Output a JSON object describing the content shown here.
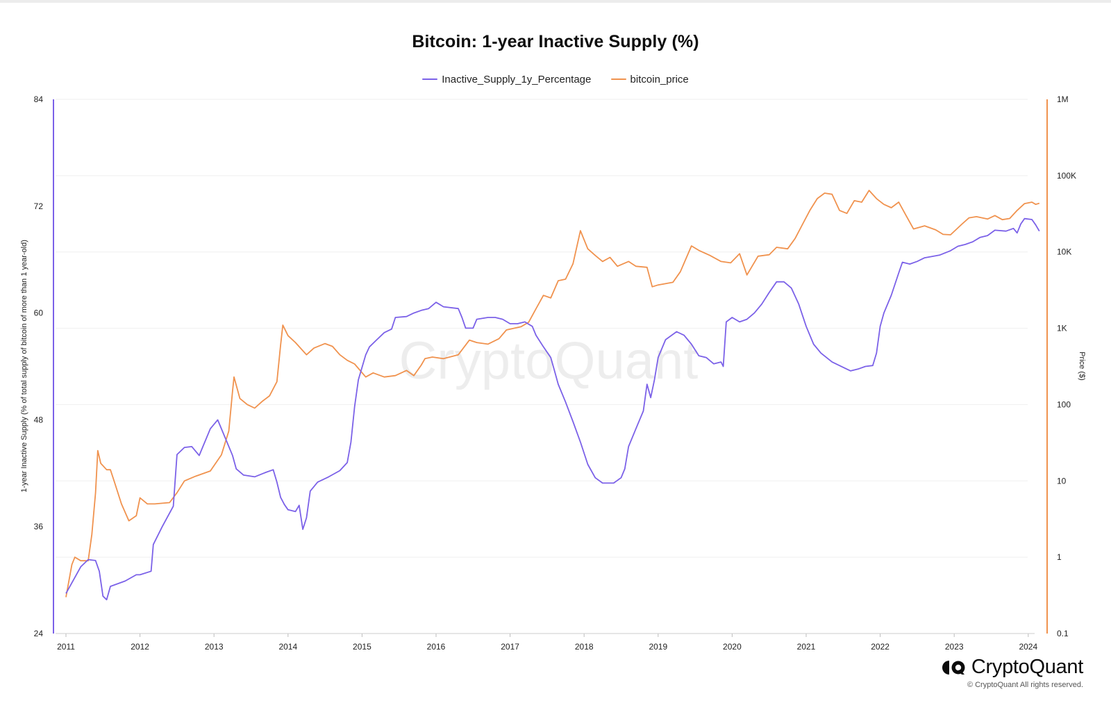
{
  "title": "Bitcoin: 1-year Inactive Supply (%)",
  "legend": {
    "items": [
      {
        "label": "Inactive_Supply_1y_Percentage",
        "color": "#7b61e8"
      },
      {
        "label": "bitcoin_price",
        "color": "#f0924e"
      }
    ]
  },
  "brand": {
    "name": "CryptoQuant",
    "copyright": "© CryptoQuant All rights reserved.",
    "watermark": "CryptoQuant"
  },
  "chart_data": {
    "type": "line",
    "title": "Bitcoin: 1-year Inactive Supply (%)",
    "x_ticks": [
      "2011",
      "2012",
      "2013",
      "2014",
      "2015",
      "2016",
      "2017",
      "2018",
      "2019",
      "2020",
      "2021",
      "2022",
      "2023",
      "2024"
    ],
    "y_left": {
      "label": "1-year Inactive Supply (% of total supply of bitcoin of more than 1 year-old)",
      "ticks": [
        24,
        36,
        48,
        60,
        72,
        84
      ],
      "range": [
        24,
        84
      ]
    },
    "y_right": {
      "label": "Price ($)",
      "scale": "log",
      "ticks": [
        "0.1",
        "1",
        "10",
        "100",
        "1K",
        "10K",
        "100K",
        "1M"
      ],
      "tick_values": [
        0.1,
        1,
        10,
        100,
        1000,
        10000,
        100000,
        1000000
      ],
      "range": [
        0.1,
        1000000
      ]
    },
    "grid": true,
    "legend_position": "top-center",
    "series": [
      {
        "name": "Inactive_Supply_1y_Percentage",
        "axis": "left",
        "color": "#7b61e8",
        "points": [
          [
            2011.0,
            28.5
          ],
          [
            2011.1,
            30.0
          ],
          [
            2011.2,
            31.5
          ],
          [
            2011.3,
            32.3
          ],
          [
            2011.4,
            32.2
          ],
          [
            2011.45,
            31.0
          ],
          [
            2011.5,
            28.2
          ],
          [
            2011.55,
            27.8
          ],
          [
            2011.6,
            29.3
          ],
          [
            2011.8,
            29.9
          ],
          [
            2011.95,
            30.6
          ],
          [
            2012.0,
            30.6
          ],
          [
            2012.15,
            31.0
          ],
          [
            2012.18,
            34.0
          ],
          [
            2012.3,
            36.0
          ],
          [
            2012.45,
            38.3
          ],
          [
            2012.5,
            44.1
          ],
          [
            2012.6,
            44.9
          ],
          [
            2012.7,
            45.0
          ],
          [
            2012.8,
            44.0
          ],
          [
            2012.85,
            45.0
          ],
          [
            2012.95,
            47.0
          ],
          [
            2013.05,
            48.0
          ],
          [
            2013.15,
            46.0
          ],
          [
            2013.25,
            44.0
          ],
          [
            2013.3,
            42.5
          ],
          [
            2013.4,
            41.8
          ],
          [
            2013.55,
            41.6
          ],
          [
            2013.7,
            42.1
          ],
          [
            2013.8,
            42.4
          ],
          [
            2013.85,
            41.0
          ],
          [
            2013.9,
            39.3
          ],
          [
            2013.95,
            38.5
          ],
          [
            2014.0,
            37.9
          ],
          [
            2014.1,
            37.7
          ],
          [
            2014.15,
            38.4
          ],
          [
            2014.2,
            35.7
          ],
          [
            2014.25,
            37.0
          ],
          [
            2014.3,
            40.0
          ],
          [
            2014.4,
            41.0
          ],
          [
            2014.55,
            41.6
          ],
          [
            2014.7,
            42.3
          ],
          [
            2014.8,
            43.2
          ],
          [
            2014.85,
            45.5
          ],
          [
            2014.9,
            49.5
          ],
          [
            2014.95,
            52.5
          ],
          [
            2015.05,
            55.3
          ],
          [
            2015.1,
            56.2
          ],
          [
            2015.2,
            57.0
          ],
          [
            2015.3,
            57.8
          ],
          [
            2015.4,
            58.2
          ],
          [
            2015.45,
            59.5
          ],
          [
            2015.6,
            59.6
          ],
          [
            2015.7,
            60.0
          ],
          [
            2015.8,
            60.3
          ],
          [
            2015.9,
            60.5
          ],
          [
            2016.0,
            61.2
          ],
          [
            2016.1,
            60.7
          ],
          [
            2016.3,
            60.5
          ],
          [
            2016.35,
            59.5
          ],
          [
            2016.4,
            58.3
          ],
          [
            2016.5,
            58.3
          ],
          [
            2016.55,
            59.3
          ],
          [
            2016.7,
            59.5
          ],
          [
            2016.8,
            59.5
          ],
          [
            2016.9,
            59.3
          ],
          [
            2017.0,
            58.8
          ],
          [
            2017.1,
            58.8
          ],
          [
            2017.2,
            59.0
          ],
          [
            2017.3,
            58.5
          ],
          [
            2017.35,
            57.5
          ],
          [
            2017.45,
            56.2
          ],
          [
            2017.55,
            55.0
          ],
          [
            2017.6,
            53.5
          ],
          [
            2017.65,
            52.0
          ],
          [
            2017.75,
            50.0
          ],
          [
            2017.85,
            47.8
          ],
          [
            2017.95,
            45.5
          ],
          [
            2018.05,
            43.0
          ],
          [
            2018.15,
            41.5
          ],
          [
            2018.25,
            40.9
          ],
          [
            2018.4,
            40.9
          ],
          [
            2018.5,
            41.5
          ],
          [
            2018.55,
            42.5
          ],
          [
            2018.6,
            45.0
          ],
          [
            2018.7,
            47.0
          ],
          [
            2018.8,
            49.0
          ],
          [
            2018.85,
            52.0
          ],
          [
            2018.9,
            50.5
          ],
          [
            2018.95,
            52.5
          ],
          [
            2019.0,
            55.0
          ],
          [
            2019.1,
            57.0
          ],
          [
            2019.25,
            57.9
          ],
          [
            2019.35,
            57.5
          ],
          [
            2019.45,
            56.5
          ],
          [
            2019.55,
            55.2
          ],
          [
            2019.65,
            55.0
          ],
          [
            2019.75,
            54.3
          ],
          [
            2019.85,
            54.5
          ],
          [
            2019.88,
            54.0
          ],
          [
            2019.92,
            59.0
          ],
          [
            2020.0,
            59.5
          ],
          [
            2020.1,
            59.0
          ],
          [
            2020.2,
            59.3
          ],
          [
            2020.3,
            60.0
          ],
          [
            2020.4,
            61.0
          ],
          [
            2020.5,
            62.3
          ],
          [
            2020.6,
            63.5
          ],
          [
            2020.7,
            63.5
          ],
          [
            2020.8,
            62.8
          ],
          [
            2020.9,
            61.0
          ],
          [
            2021.0,
            58.5
          ],
          [
            2021.1,
            56.5
          ],
          [
            2021.2,
            55.5
          ],
          [
            2021.35,
            54.5
          ],
          [
            2021.5,
            53.9
          ],
          [
            2021.6,
            53.5
          ],
          [
            2021.7,
            53.7
          ],
          [
            2021.8,
            54.0
          ],
          [
            2021.9,
            54.1
          ],
          [
            2021.95,
            55.5
          ],
          [
            2022.0,
            58.5
          ],
          [
            2022.05,
            60.0
          ],
          [
            2022.15,
            62.0
          ],
          [
            2022.25,
            64.5
          ],
          [
            2022.3,
            65.7
          ],
          [
            2022.4,
            65.5
          ],
          [
            2022.5,
            65.8
          ],
          [
            2022.6,
            66.2
          ],
          [
            2022.8,
            66.5
          ],
          [
            2022.95,
            67.0
          ],
          [
            2023.05,
            67.5
          ],
          [
            2023.15,
            67.7
          ],
          [
            2023.25,
            68.0
          ],
          [
            2023.35,
            68.5
          ],
          [
            2023.45,
            68.7
          ],
          [
            2023.55,
            69.3
          ],
          [
            2023.7,
            69.2
          ],
          [
            2023.8,
            69.5
          ],
          [
            2023.85,
            69.0
          ],
          [
            2023.9,
            70.0
          ],
          [
            2023.95,
            70.6
          ],
          [
            2024.05,
            70.5
          ],
          [
            2024.1,
            69.9
          ],
          [
            2024.15,
            69.2
          ]
        ]
      },
      {
        "name": "bitcoin_price",
        "axis": "right",
        "color": "#f0924e",
        "points": [
          [
            2011.0,
            0.3
          ],
          [
            2011.08,
            0.8
          ],
          [
            2011.12,
            1.0
          ],
          [
            2011.2,
            0.9
          ],
          [
            2011.3,
            0.9
          ],
          [
            2011.35,
            2.0
          ],
          [
            2011.4,
            7.0
          ],
          [
            2011.43,
            25.0
          ],
          [
            2011.47,
            17.0
          ],
          [
            2011.55,
            14.0
          ],
          [
            2011.6,
            14.0
          ],
          [
            2011.65,
            10.0
          ],
          [
            2011.75,
            5.0
          ],
          [
            2011.85,
            3.0
          ],
          [
            2011.95,
            3.5
          ],
          [
            2012.0,
            6.0
          ],
          [
            2012.1,
            5.0
          ],
          [
            2012.2,
            5.0
          ],
          [
            2012.4,
            5.2
          ],
          [
            2012.5,
            7.0
          ],
          [
            2012.6,
            10.0
          ],
          [
            2012.75,
            11.5
          ],
          [
            2012.95,
            13.5
          ],
          [
            2013.1,
            22.0
          ],
          [
            2013.2,
            45.0
          ],
          [
            2013.25,
            150.0
          ],
          [
            2013.27,
            230.0
          ],
          [
            2013.35,
            120.0
          ],
          [
            2013.45,
            100.0
          ],
          [
            2013.55,
            90.0
          ],
          [
            2013.65,
            110.0
          ],
          [
            2013.75,
            130.0
          ],
          [
            2013.85,
            200.0
          ],
          [
            2013.9,
            600.0
          ],
          [
            2013.93,
            1100.0
          ],
          [
            2014.0,
            800.0
          ],
          [
            2014.1,
            650.0
          ],
          [
            2014.25,
            450.0
          ],
          [
            2014.35,
            550.0
          ],
          [
            2014.5,
            630.0
          ],
          [
            2014.6,
            580.0
          ],
          [
            2014.7,
            450.0
          ],
          [
            2014.8,
            380.0
          ],
          [
            2014.9,
            340.0
          ],
          [
            2015.05,
            230.0
          ],
          [
            2015.15,
            260.0
          ],
          [
            2015.3,
            230.0
          ],
          [
            2015.45,
            240.0
          ],
          [
            2015.6,
            280.0
          ],
          [
            2015.7,
            240.0
          ],
          [
            2015.8,
            330.0
          ],
          [
            2015.85,
            400.0
          ],
          [
            2015.95,
            420.0
          ],
          [
            2016.1,
            400.0
          ],
          [
            2016.3,
            450.0
          ],
          [
            2016.45,
            700.0
          ],
          [
            2016.55,
            650.0
          ],
          [
            2016.7,
            620.0
          ],
          [
            2016.85,
            730.0
          ],
          [
            2016.95,
            950.0
          ],
          [
            2017.05,
            1000.0
          ],
          [
            2017.15,
            1050.0
          ],
          [
            2017.25,
            1200.0
          ],
          [
            2017.35,
            1800.0
          ],
          [
            2017.45,
            2700.0
          ],
          [
            2017.55,
            2500.0
          ],
          [
            2017.65,
            4200.0
          ],
          [
            2017.75,
            4400.0
          ],
          [
            2017.85,
            7000.0
          ],
          [
            2017.95,
            19000.0
          ],
          [
            2018.05,
            11000.0
          ],
          [
            2018.15,
            9000.0
          ],
          [
            2018.25,
            7500.0
          ],
          [
            2018.35,
            8500.0
          ],
          [
            2018.45,
            6500.0
          ],
          [
            2018.6,
            7500.0
          ],
          [
            2018.7,
            6500.0
          ],
          [
            2018.85,
            6300.0
          ],
          [
            2018.92,
            3500.0
          ],
          [
            2019.0,
            3700.0
          ],
          [
            2019.2,
            4000.0
          ],
          [
            2019.3,
            5500.0
          ],
          [
            2019.45,
            12000.0
          ],
          [
            2019.55,
            10500.0
          ],
          [
            2019.7,
            9000.0
          ],
          [
            2019.85,
            7500.0
          ],
          [
            2019.98,
            7200.0
          ],
          [
            2020.1,
            9500.0
          ],
          [
            2020.2,
            5000.0
          ],
          [
            2020.35,
            8800.0
          ],
          [
            2020.5,
            9200.0
          ],
          [
            2020.6,
            11500.0
          ],
          [
            2020.75,
            11000.0
          ],
          [
            2020.85,
            15000.0
          ],
          [
            2020.95,
            23000.0
          ],
          [
            2021.05,
            35000.0
          ],
          [
            2021.15,
            50000.0
          ],
          [
            2021.25,
            59000.0
          ],
          [
            2021.35,
            57000.0
          ],
          [
            2021.45,
            35000.0
          ],
          [
            2021.55,
            32000.0
          ],
          [
            2021.65,
            47000.0
          ],
          [
            2021.75,
            45000.0
          ],
          [
            2021.85,
            64000.0
          ],
          [
            2021.95,
            50000.0
          ],
          [
            2022.05,
            42000.0
          ],
          [
            2022.15,
            38000.0
          ],
          [
            2022.25,
            45000.0
          ],
          [
            2022.35,
            30000.0
          ],
          [
            2022.45,
            20000.0
          ],
          [
            2022.6,
            22000.0
          ],
          [
            2022.75,
            19500.0
          ],
          [
            2022.85,
            17000.0
          ],
          [
            2022.95,
            16800.0
          ],
          [
            2023.1,
            23000.0
          ],
          [
            2023.2,
            28000.0
          ],
          [
            2023.3,
            29000.0
          ],
          [
            2023.45,
            27000.0
          ],
          [
            2023.55,
            30000.0
          ],
          [
            2023.65,
            26500.0
          ],
          [
            2023.75,
            27500.0
          ],
          [
            2023.85,
            35000.0
          ],
          [
            2023.95,
            43000.0
          ],
          [
            2024.05,
            45000.0
          ],
          [
            2024.1,
            42000.0
          ],
          [
            2024.15,
            43500.0
          ]
        ]
      }
    ]
  }
}
